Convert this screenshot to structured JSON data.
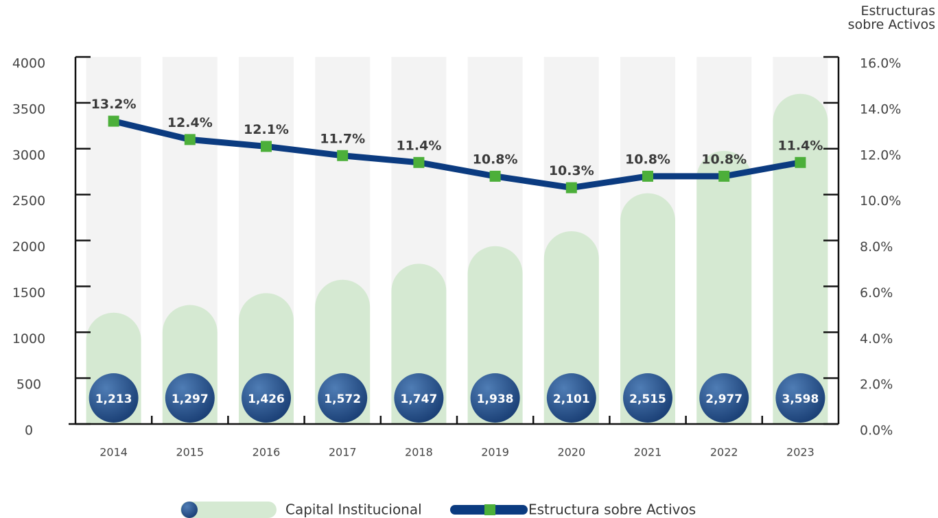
{
  "chart_data": {
    "type": "bar_line",
    "y2_label": "Estructuras sobre Activos",
    "categories": [
      "2014",
      "2015",
      "2016",
      "2017",
      "2018",
      "2019",
      "2020",
      "2021",
      "2022",
      "2023"
    ],
    "series": [
      {
        "name": "Capital Institucional",
        "color": "#d5e9d2",
        "badge_color": "#1f4b86",
        "values": [
          1213,
          1297,
          1426,
          1572,
          1747,
          1938,
          2101,
          2515,
          2977,
          3598
        ],
        "value_labels": [
          "1,213",
          "1,297",
          "1,426",
          "1,572",
          "1,747",
          "1,938",
          "2,101",
          "2,515",
          "2,977",
          "3,598"
        ]
      },
      {
        "name": "Estructura sobre Activos",
        "type": "line",
        "axis": "y2",
        "color": "#0b3b80",
        "marker_color": "#4caf3a",
        "values": [
          13.2,
          12.4,
          12.1,
          11.7,
          11.4,
          10.8,
          10.3,
          10.8,
          10.8,
          11.4
        ],
        "value_labels": [
          "13.2%",
          "12.4%",
          "12.1%",
          "11.7%",
          "11.4%",
          "10.8%",
          "10.3%",
          "10.8%",
          "10.8%",
          "11.4%"
        ]
      }
    ],
    "ylim": [
      0,
      4000
    ],
    "yticks": [
      0,
      500,
      1000,
      1500,
      2000,
      2500,
      3000,
      3500,
      4000
    ],
    "y2lim": [
      0,
      16
    ],
    "y2ticks": [
      {
        "value": 0,
        "label": "0.0%"
      },
      {
        "value": 2,
        "label": "2.0%"
      },
      {
        "value": 4,
        "label": "4.0%"
      },
      {
        "value": 6,
        "label": "6.0%"
      },
      {
        "value": 8,
        "label": "8.0%"
      },
      {
        "value": 10,
        "label": "10.0%"
      },
      {
        "value": 12,
        "label": "12.0%"
      },
      {
        "value": 14,
        "label": "14.0%"
      },
      {
        "value": 16,
        "label": "16.0%"
      }
    ]
  }
}
